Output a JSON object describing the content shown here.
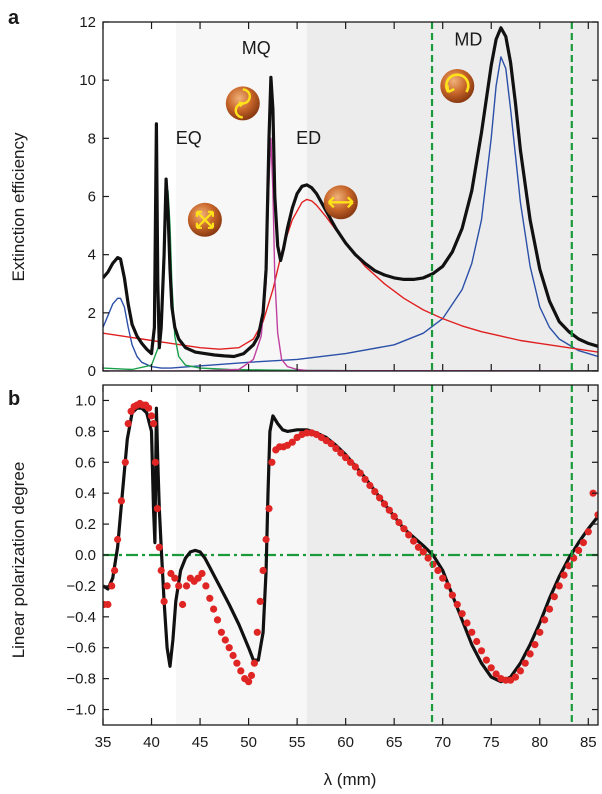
{
  "figure": {
    "xlabel": "λ (mm)",
    "x_ticks": [
      35,
      40,
      45,
      50,
      55,
      60,
      65,
      70,
      75,
      80,
      85
    ]
  },
  "chart_data": [
    {
      "panel": "a",
      "type": "line",
      "xlim": [
        35,
        86
      ],
      "ylim": [
        0,
        12
      ],
      "ylabel": "Extinction efficiency",
      "y_ticks": [
        0,
        2,
        4,
        6,
        8,
        10,
        12
      ],
      "shaded_regions": [
        {
          "x": [
            42.5,
            56
          ],
          "color": "#f7f7f7"
        },
        {
          "x": [
            56,
            86
          ],
          "color": "#ececec"
        }
      ],
      "vlines": [
        {
          "x": 68.9,
          "color": "#1a9a3a",
          "style": "dashed"
        },
        {
          "x": 83.3,
          "color": "#1a9a3a",
          "style": "dashed"
        }
      ],
      "annotations": [
        {
          "text": "EQ",
          "x": 42.5,
          "y": 7.8
        },
        {
          "text": "MQ",
          "x": 49.3,
          "y": 10.9
        },
        {
          "text": "ED",
          "x": 54.9,
          "y": 7.8
        },
        {
          "text": "MD",
          "x": 71.2,
          "y": 11.2
        }
      ],
      "icons": [
        {
          "name": "eq-mode-icon",
          "x": 45.5,
          "y": 5.2
        },
        {
          "name": "mq-mode-icon",
          "x": 49.4,
          "y": 9.2
        },
        {
          "name": "ed-mode-icon",
          "x": 59.5,
          "y": 5.8
        },
        {
          "name": "md-mode-icon",
          "x": 71.5,
          "y": 9.8
        }
      ],
      "series": [
        {
          "color": "#111111",
          "width": 3.2,
          "x": [
            35,
            35.5,
            36,
            36.5,
            36.8,
            37.2,
            37.6,
            38,
            38.5,
            39,
            39.5,
            40,
            40.3,
            40.5,
            40.65,
            40.8,
            41,
            41.3,
            41.5,
            41.7,
            41.9,
            42.1,
            42.4,
            42.8,
            43.5,
            44.5,
            45.5,
            46.5,
            47.5,
            48.5,
            49.5,
            50.5,
            51,
            51.5,
            51.8,
            52.1,
            52.3,
            52.5,
            52.7,
            53,
            53.3,
            53.6,
            54,
            54.5,
            55,
            55.5,
            56,
            56.5,
            57,
            58,
            59,
            60,
            61,
            62,
            63,
            64,
            65,
            66,
            67,
            68,
            69,
            70,
            71,
            72,
            73,
            74,
            75,
            75.5,
            76,
            76.5,
            77,
            77.5,
            78,
            79,
            80,
            81,
            82,
            83,
            84,
            85,
            86
          ],
          "y": [
            3.2,
            3.4,
            3.7,
            3.9,
            3.85,
            3.2,
            2.3,
            1.6,
            1.2,
            0.95,
            0.75,
            0.6,
            1.5,
            8.5,
            3,
            0.8,
            1.5,
            4,
            6.6,
            5.5,
            3.5,
            2.2,
            1.5,
            1.1,
            0.8,
            0.65,
            0.6,
            0.55,
            0.52,
            0.5,
            0.6,
            0.9,
            1.2,
            2,
            3.5,
            8,
            10.1,
            9,
            6,
            4.3,
            3.8,
            4.2,
            4.9,
            5.6,
            6.1,
            6.35,
            6.4,
            6.3,
            6.1,
            5.5,
            4.9,
            4.4,
            4,
            3.7,
            3.45,
            3.3,
            3.2,
            3.15,
            3.15,
            3.2,
            3.35,
            3.6,
            4.1,
            4.9,
            6.2,
            8.2,
            10.5,
            11.4,
            11.8,
            11.5,
            10.6,
            9.2,
            7.6,
            5.2,
            3.5,
            2.4,
            1.7,
            1.35,
            1.1,
            0.95,
            0.85
          ]
        },
        {
          "color": "#2b50a8",
          "width": 1.4,
          "x": [
            35,
            35.5,
            36,
            36.5,
            36.8,
            37.2,
            37.6,
            38,
            38.5,
            39,
            40,
            41,
            42,
            44,
            46,
            50,
            55,
            60,
            65,
            68,
            70,
            72,
            73,
            74,
            75,
            75.5,
            76,
            76.5,
            77,
            77.5,
            78,
            79,
            80,
            81,
            82,
            84,
            86
          ],
          "y": [
            1.5,
            1.9,
            2.3,
            2.5,
            2.5,
            2.2,
            1.5,
            0.9,
            0.5,
            0.3,
            0.15,
            0.1,
            0.1,
            0.15,
            0.2,
            0.3,
            0.4,
            0.6,
            0.9,
            1.3,
            1.8,
            2.8,
            3.7,
            5.2,
            8,
            9.8,
            10.8,
            10.4,
            9,
            7.4,
            5.8,
            3.6,
            2.2,
            1.5,
            1.1,
            0.7,
            0.5
          ]
        },
        {
          "color": "#e02020",
          "width": 1.4,
          "x": [
            35,
            37,
            39,
            41,
            43,
            45,
            47,
            49,
            50.5,
            51.5,
            52.5,
            53.5,
            54.5,
            55.5,
            56,
            56.5,
            57,
            58,
            59,
            60,
            62,
            64,
            66,
            68,
            70,
            72,
            74,
            76,
            78,
            80,
            82,
            84,
            86
          ],
          "y": [
            1.3,
            1.2,
            1.1,
            1,
            0.9,
            0.8,
            0.75,
            0.8,
            1.1,
            1.7,
            2.8,
            4.2,
            5.2,
            5.8,
            5.9,
            5.85,
            5.7,
            5.3,
            4.85,
            4.4,
            3.6,
            3,
            2.5,
            2.1,
            1.8,
            1.55,
            1.35,
            1.2,
            1.05,
            0.95,
            0.85,
            0.75,
            0.65
          ]
        },
        {
          "color": "#1aa04a",
          "width": 1.4,
          "x": [
            35,
            38,
            40,
            40.8,
            41.2,
            41.5,
            41.7,
            41.9,
            42.1,
            42.4,
            42.8,
            43.5,
            45,
            48,
            52,
            56,
            62,
            70,
            86
          ],
          "y": [
            0.1,
            0.05,
            0.2,
            0.9,
            3,
            5.5,
            6.2,
            5,
            3,
            1.2,
            0.5,
            0.2,
            0.1,
            0.05,
            0.03,
            0.02,
            0.01,
            0.01,
            0.01
          ]
        },
        {
          "color": "#c040a0",
          "width": 1.4,
          "x": [
            35,
            45,
            49,
            50.5,
            51.3,
            51.8,
            52.1,
            52.3,
            52.5,
            52.7,
            53,
            53.4,
            54,
            55,
            56,
            60,
            70,
            86
          ],
          "y": [
            0,
            0,
            0.05,
            0.4,
            1.2,
            3,
            6.5,
            8,
            6.2,
            3.2,
            1.3,
            0.4,
            0.15,
            0.05,
            0.02,
            0.01,
            0.01,
            0
          ]
        }
      ]
    },
    {
      "panel": "b",
      "type": "line",
      "xlim": [
        35,
        86
      ],
      "ylim": [
        -1.1,
        1.1
      ],
      "ylabel": "Linear polarization degree",
      "y_ticks": [
        -1.0,
        -0.8,
        -0.6,
        -0.4,
        -0.2,
        0.0,
        0.2,
        0.4,
        0.6,
        0.8,
        1.0
      ],
      "y_tick_labels": [
        "−1.0",
        "−0.8",
        "−0.6",
        "−0.4",
        "−0.2",
        "0.0",
        "0.2",
        "0.4",
        "0.6",
        "0.8",
        "1.0"
      ],
      "shaded_regions": [
        {
          "x": [
            42.5,
            56
          ],
          "color": "#f7f7f7"
        },
        {
          "x": [
            56,
            86
          ],
          "color": "#ececec"
        }
      ],
      "vlines": [
        {
          "x": 68.9,
          "color": "#1a9a3a",
          "style": "dashed"
        },
        {
          "x": 83.3,
          "color": "#1a9a3a",
          "style": "dashed"
        }
      ],
      "hlines": [
        {
          "y": 0,
          "color": "#1a9a3a",
          "style": "dashdot"
        }
      ],
      "series": [
        {
          "type": "line",
          "color": "#111111",
          "width": 3.2,
          "x": [
            35,
            35.5,
            36,
            36.5,
            37,
            37.5,
            38,
            38.5,
            39,
            39.5,
            40,
            40.2,
            40.35,
            40.5,
            40.65,
            40.8,
            41,
            41.3,
            41.6,
            41.9,
            42.2,
            42.5,
            43,
            43.5,
            44,
            44.5,
            45,
            45.5,
            46,
            47,
            48,
            49,
            50,
            50.5,
            51,
            51.5,
            51.8,
            52,
            52.2,
            52.5,
            53,
            53.5,
            54,
            55,
            56,
            57,
            58,
            59,
            60,
            62,
            64,
            66,
            68,
            69,
            70,
            71,
            72,
            73,
            74,
            75,
            76,
            77,
            78,
            79,
            80,
            81,
            82,
            83,
            84,
            85,
            86
          ],
          "y": [
            -0.2,
            -0.22,
            -0.15,
            0.05,
            0.4,
            0.75,
            0.92,
            0.95,
            0.95,
            0.92,
            0.8,
            0.3,
            0.08,
            0.95,
            0.6,
            0.3,
            0.05,
            -0.3,
            -0.6,
            -0.72,
            -0.55,
            -0.3,
            -0.1,
            -0.02,
            0.02,
            0.03,
            0.02,
            -0.02,
            -0.08,
            -0.2,
            -0.32,
            -0.45,
            -0.6,
            -0.68,
            -0.68,
            -0.5,
            -0.1,
            0.4,
            0.8,
            0.9,
            0.85,
            0.81,
            0.8,
            0.81,
            0.81,
            0.79,
            0.76,
            0.71,
            0.65,
            0.5,
            0.33,
            0.17,
            0.06,
            0,
            -0.1,
            -0.26,
            -0.42,
            -0.58,
            -0.7,
            -0.79,
            -0.82,
            -0.79,
            -0.7,
            -0.58,
            -0.44,
            -0.28,
            -0.14,
            -0.02,
            0.08,
            0.17,
            0.25
          ]
        },
        {
          "type": "scatter",
          "color": "#e02525",
          "x": [
            35.1,
            35.5,
            35.9,
            36.2,
            36.5,
            36.9,
            37.3,
            37.6,
            37.9,
            38.2,
            38.5,
            38.8,
            39.1,
            39.4,
            39.7,
            40,
            40.2,
            40.4,
            40.6,
            40.8,
            41,
            41.3,
            41.6,
            42,
            42.4,
            42.8,
            43.2,
            43.6,
            44,
            44.4,
            44.8,
            45.2,
            45.6,
            46,
            46.4,
            46.8,
            47.2,
            47.6,
            48,
            48.4,
            48.8,
            49.2,
            49.6,
            50,
            50.3,
            50.6,
            50.9,
            51.2,
            51.5,
            51.8,
            52.1,
            52.4,
            52.8,
            53.2,
            53.6,
            54,
            54.5,
            55,
            55.5,
            56,
            56.5,
            57,
            57.5,
            58,
            58.5,
            59,
            59.5,
            60,
            60.5,
            61,
            61.5,
            62,
            62.5,
            63,
            63.5,
            64,
            64.5,
            65,
            65.5,
            66,
            66.5,
            67,
            67.5,
            68,
            68.5,
            69,
            69.5,
            70,
            70.5,
            71,
            71.5,
            72,
            72.5,
            73,
            73.5,
            74,
            74.5,
            75,
            75.5,
            76,
            76.5,
            77,
            77.5,
            78,
            78.5,
            79,
            79.5,
            80,
            80.5,
            81,
            81.5,
            82,
            82.5,
            83,
            83.5,
            84,
            84.5,
            85,
            85.5,
            86
          ],
          "y": [
            -0.32,
            -0.32,
            -0.2,
            -0.1,
            0.1,
            0.35,
            0.6,
            0.85,
            0.93,
            0.96,
            0.97,
            0.98,
            0.97,
            0.97,
            0.95,
            0.9,
            0.85,
            0.6,
            0.3,
            0.05,
            -0.1,
            -0.3,
            -0.2,
            -0.12,
            -0.15,
            -0.2,
            -0.32,
            -0.2,
            -0.15,
            -0.17,
            -0.15,
            -0.12,
            -0.2,
            -0.28,
            -0.35,
            -0.42,
            -0.5,
            -0.55,
            -0.6,
            -0.65,
            -0.7,
            -0.75,
            -0.8,
            -0.82,
            -0.78,
            -0.7,
            -0.5,
            -0.3,
            -0.1,
            0.1,
            0.3,
            0.6,
            0.68,
            0.7,
            0.7,
            0.71,
            0.73,
            0.76,
            0.78,
            0.79,
            0.79,
            0.78,
            0.76,
            0.74,
            0.72,
            0.69,
            0.66,
            0.63,
            0.6,
            0.57,
            0.53,
            0.49,
            0.45,
            0.41,
            0.37,
            0.33,
            0.29,
            0.25,
            0.21,
            0.17,
            0.13,
            0.09,
            0.05,
            0.02,
            -0.02,
            -0.06,
            -0.1,
            -0.15,
            -0.2,
            -0.26,
            -0.32,
            -0.38,
            -0.44,
            -0.5,
            -0.56,
            -0.62,
            -0.68,
            -0.73,
            -0.77,
            -0.8,
            -0.81,
            -0.81,
            -0.79,
            -0.75,
            -0.7,
            -0.64,
            -0.58,
            -0.5,
            -0.42,
            -0.35,
            -0.27,
            -0.2,
            -0.13,
            -0.07,
            -0.02,
            0.03,
            0.08,
            0.15,
            0.4,
            0.26
          ]
        }
      ]
    }
  ]
}
